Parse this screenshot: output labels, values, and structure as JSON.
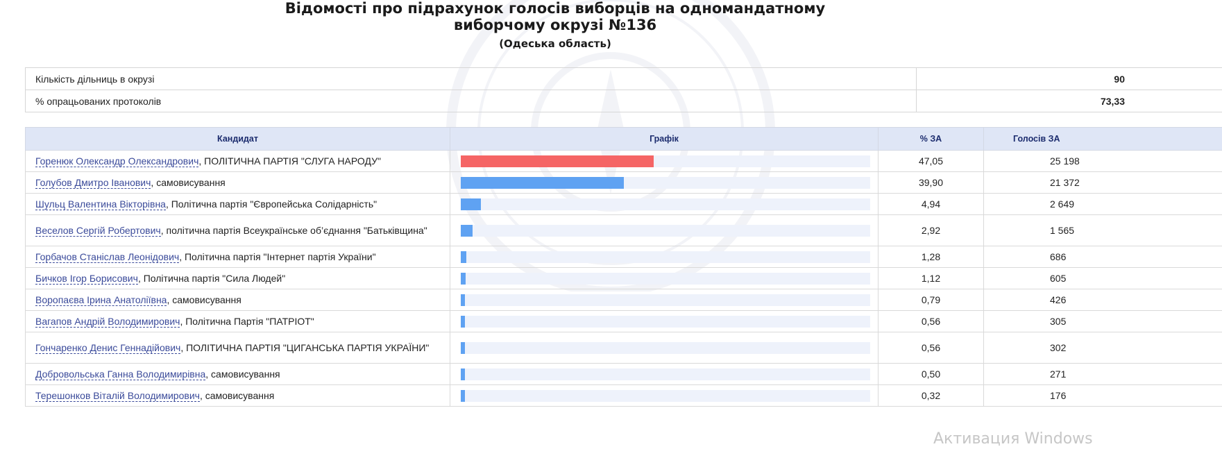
{
  "header": {
    "title_line1": "Відомості про підрахунок голосів виборців на одномандатному",
    "title_line2": "виборчому окрузі №136",
    "subtitle": "(Одеська область)"
  },
  "summary": [
    {
      "label": "Кількість дільниць в окрузі",
      "value": "90"
    },
    {
      "label": "% опрацьованих протоколів",
      "value": "73,33"
    }
  ],
  "table": {
    "headers": {
      "candidate": "Кандидат",
      "chart": "Графік",
      "percent": "% ЗА",
      "votes": "Голосів ЗА"
    },
    "rows": [
      {
        "name": "Горенюк Олександр Олександрович",
        "party": ", ПОЛІТИЧНА ПАРТІЯ \"СЛУГА НАРОДУ\"",
        "percent": "47,05",
        "votes": "25 198",
        "share": 47.05
      },
      {
        "name": "Голубов Дмитро Іванович",
        "party": ", самовисування",
        "percent": "39,90",
        "votes": "21 372",
        "share": 39.9
      },
      {
        "name": "Шульц Валентина Вікторівна",
        "party": ", Політична партія \"Європейська Солідарність\"",
        "percent": "4,94",
        "votes": "2 649",
        "share": 4.94
      },
      {
        "name": "Веселов Сергій Робертович",
        "party": ", політична партія Всеукраїнське об’єднання \"Батьківщина\"",
        "percent": "2,92",
        "votes": "1 565",
        "share": 2.92
      },
      {
        "name": "Горбачов Станіслав Леонідович",
        "party": ", Політична партія \"Інтернет партія України\"",
        "percent": "1,28",
        "votes": "686",
        "share": 1.28
      },
      {
        "name": "Бичков Ігор Борисович",
        "party": ", Політична партія \"Сила Людей\"",
        "percent": "1,12",
        "votes": "605",
        "share": 1.12
      },
      {
        "name": "Воропаєва Ірина Анатоліївна",
        "party": ", самовисування",
        "percent": "0,79",
        "votes": "426",
        "share": 0.79
      },
      {
        "name": "Вагапов Андрій Володимирович",
        "party": ", Політична Партія \"ПАТРІОТ\"",
        "percent": "0,56",
        "votes": "305",
        "share": 0.56
      },
      {
        "name": "Гончаренко Денис Геннадійович",
        "party": ", ПОЛІТИЧНА ПАРТІЯ \"ЦИГАНСЬКА ПАРТІЯ УКРАЇНИ\"",
        "percent": "0,56",
        "votes": "302",
        "share": 0.56
      },
      {
        "name": "Добровольська Ганна Володимирівна",
        "party": ", самовисування",
        "percent": "0,50",
        "votes": "271",
        "share": 0.5
      },
      {
        "name": "Терешонков Віталій Володимирович",
        "party": ", самовисування",
        "percent": "0,32",
        "votes": "176",
        "share": 0.32
      }
    ]
  },
  "colors": {
    "leader_bar": "#f56565",
    "other_bar": "#5fa2f2",
    "bar_track": "#eef2fb",
    "header_bg": "#dfe6f6"
  },
  "overlay": {
    "windows_activation": "Активация Windows"
  }
}
